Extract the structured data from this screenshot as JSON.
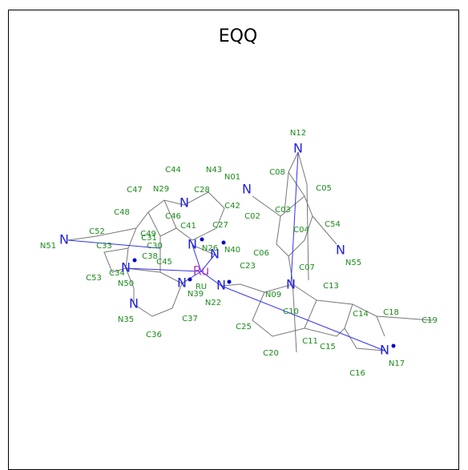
{
  "title": "EQQ",
  "atom_labels": [
    "N12",
    "C08",
    "C05",
    "N01",
    "C44",
    "N43",
    "N29",
    "C28",
    "C47",
    "C02",
    "C03",
    "C42",
    "C48",
    "C49",
    "C46",
    "C54",
    "C52",
    "C41",
    "C27",
    "C04",
    "C31",
    "C33",
    "C30",
    "N26",
    "N40",
    "C06",
    "N55",
    "N51",
    "C23",
    "C38",
    "C45",
    "C07",
    "C34",
    "C53",
    "N50",
    "N39",
    "RU",
    "C13",
    "N22",
    "N09",
    "C10",
    "C14",
    "C18",
    "C19",
    "N35",
    "C37",
    "C25",
    "C36",
    "C11",
    "C15",
    "C20",
    "N17",
    "C16"
  ],
  "element_symbols": [
    "Ru",
    "N",
    "N",
    "N",
    "N",
    "N",
    "N",
    "N",
    "N",
    "N",
    "N",
    "N",
    "N",
    "N"
  ]
}
